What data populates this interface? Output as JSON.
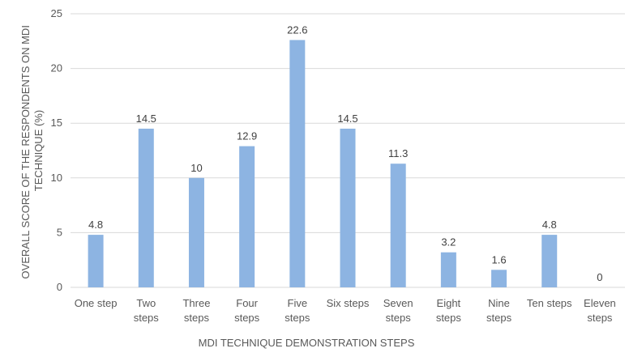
{
  "chart_data": {
    "type": "bar",
    "categories": [
      [
        "One step"
      ],
      [
        "Two",
        "steps"
      ],
      [
        "Three",
        "steps"
      ],
      [
        "Four",
        "steps"
      ],
      [
        "Five",
        "steps"
      ],
      [
        "Six steps"
      ],
      [
        "Seven",
        "steps"
      ],
      [
        "Eight",
        "steps"
      ],
      [
        "Nine",
        "steps"
      ],
      [
        "Ten steps"
      ],
      [
        "Eleven",
        "steps"
      ]
    ],
    "values": [
      4.8,
      14.5,
      10,
      12.9,
      22.6,
      14.5,
      11.3,
      3.2,
      1.6,
      4.8,
      0
    ],
    "value_labels": [
      "4.8",
      "14.5",
      "10",
      "12.9",
      "22.6",
      "14.5",
      "11.3",
      "3.2",
      "1.6",
      "4.8",
      "0"
    ],
    "xlabel": "MDI TECHNIQUE DEMONSTRATION STEPS",
    "ylabel": [
      "OVERALL SCORE OF THE RESPONDENTS ON MDI",
      "TECHNIQUE (%)"
    ],
    "ylim": [
      0,
      25
    ],
    "yticks": [
      "0",
      "5",
      "10",
      "15",
      "20",
      "25"
    ],
    "grid": true,
    "bar_color": "#8DB4E2",
    "grid_color": "#D9D9D9"
  }
}
